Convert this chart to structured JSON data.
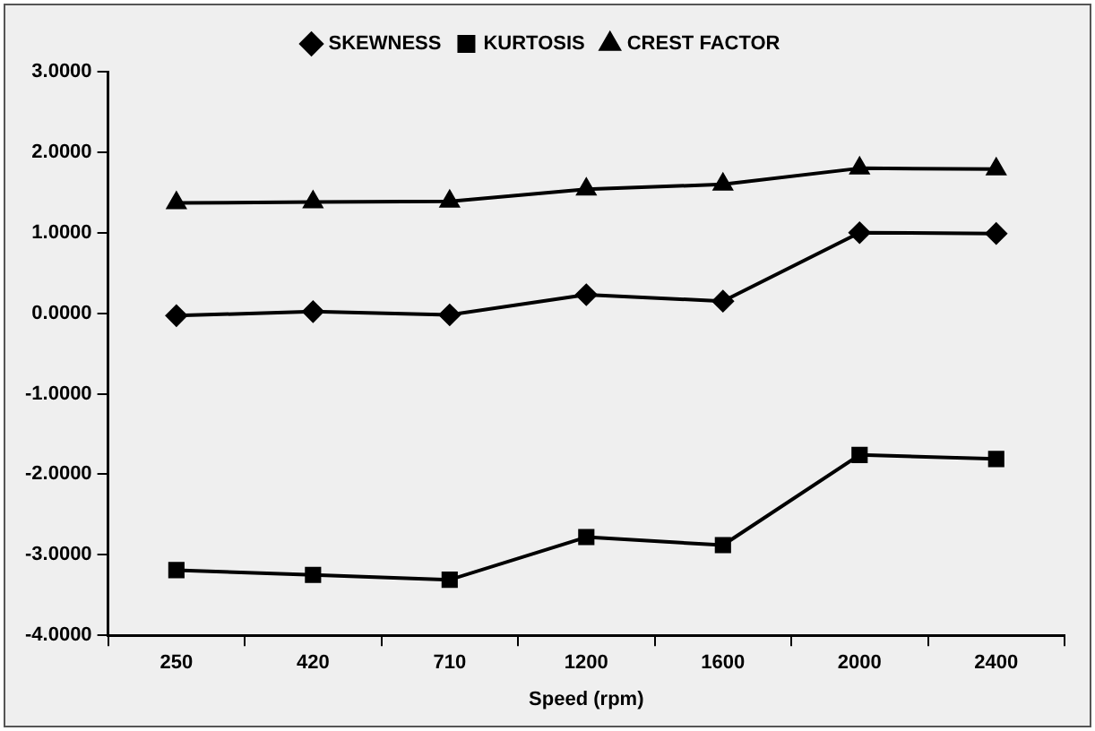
{
  "chart_data": {
    "type": "line",
    "xlabel": "Speed (rpm)",
    "categories": [
      "250",
      "420",
      "710",
      "1200",
      "1600",
      "2000",
      "2400"
    ],
    "series": [
      {
        "name": "SKEWNESS",
        "color": "#000000",
        "marker": "diamond",
        "values": [
          -0.03,
          0.02,
          -0.02,
          0.23,
          0.15,
          1.0,
          0.99
        ]
      },
      {
        "name": "KURTOSIS",
        "color": "#000000",
        "marker": "square",
        "values": [
          -3.19,
          -3.25,
          -3.31,
          -2.78,
          -2.88,
          -1.76,
          -1.81
        ]
      },
      {
        "name": "CREST FACTOR",
        "color": "#000000",
        "marker": "triangle",
        "values": [
          1.37,
          1.38,
          1.39,
          1.54,
          1.6,
          1.8,
          1.79
        ]
      }
    ],
    "ylim": [
      -4,
      3
    ],
    "yticks": [
      {
        "value": -4,
        "label": "-4.0000"
      },
      {
        "value": -3,
        "label": "-3.0000"
      },
      {
        "value": -2,
        "label": "-2.0000"
      },
      {
        "value": -1,
        "label": "-1.0000"
      },
      {
        "value": 0,
        "label": "0.0000"
      },
      {
        "value": 1,
        "label": "1.0000"
      },
      {
        "value": 2,
        "label": "2.0000"
      },
      {
        "value": 3,
        "label": "3.0000"
      }
    ],
    "grid": false,
    "legend": "top"
  }
}
